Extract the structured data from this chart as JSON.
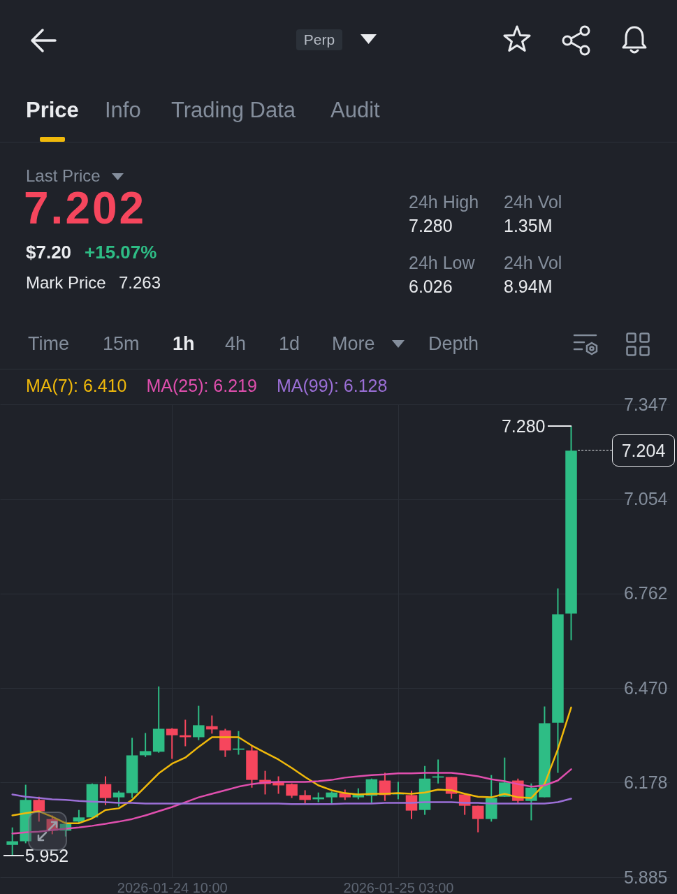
{
  "chart_data": {
    "type": "candlestick",
    "annotations": [
      "Perp",
      "Price",
      "Info",
      "Trading Data",
      "Audit",
      "Last Price",
      "7.202",
      "$7.20",
      "+15.07%",
      "Mark Price",
      "7.263",
      "24h High",
      "7.280",
      "24h Vol",
      "1.35M",
      "24h Low",
      "6.026",
      "24h Vol",
      "8.94M",
      "Time",
      "15m",
      "1h",
      "4h",
      "1d",
      "More",
      "Depth",
      {
        "text": "7.280",
        "x": "2026-01-25T16:00",
        "y": 7.28
      },
      {
        "text": "5.952",
        "x": "2026-01-23T22:00",
        "y": 5.952
      },
      {
        "text": "7.204",
        "x": "2026-01-25T16:00",
        "y": 7.204
      }
    ],
    "x": [
      "2026-01-23T22:00",
      "2026-01-23T23:00",
      "2026-01-24T00:00",
      "2026-01-24T01:00",
      "2026-01-24T02:00",
      "2026-01-24T03:00",
      "2026-01-24T04:00",
      "2026-01-24T05:00",
      "2026-01-24T06:00",
      "2026-01-24T07:00",
      "2026-01-24T08:00",
      "2026-01-24T09:00",
      "2026-01-24T10:00",
      "2026-01-24T11:00",
      "2026-01-24T12:00",
      "2026-01-24T13:00",
      "2026-01-24T14:00",
      "2026-01-24T15:00",
      "2026-01-24T16:00",
      "2026-01-24T17:00",
      "2026-01-24T18:00",
      "2026-01-24T19:00",
      "2026-01-24T20:00",
      "2026-01-24T21:00",
      "2026-01-24T22:00",
      "2026-01-24T23:00",
      "2026-01-25T00:00",
      "2026-01-25T01:00",
      "2026-01-25T02:00",
      "2026-01-25T03:00",
      "2026-01-25T04:00",
      "2026-01-25T05:00",
      "2026-01-25T06:00",
      "2026-01-25T07:00",
      "2026-01-25T08:00",
      "2026-01-25T09:00",
      "2026-01-25T10:00",
      "2026-01-25T11:00",
      "2026-01-25T12:00",
      "2026-01-25T13:00",
      "2026-01-25T14:00",
      "2026-01-25T15:00",
      "2026-01-25T16:00"
    ],
    "ohlc": [
      [
        5.985,
        6.039,
        5.952,
        5.996
      ],
      [
        5.996,
        6.171,
        5.99,
        6.124
      ],
      [
        6.124,
        6.134,
        6.057,
        6.089
      ],
      [
        6.065,
        6.076,
        6.018,
        6.029
      ],
      [
        6.029,
        6.057,
        6.011,
        6.05
      ],
      [
        6.057,
        6.093,
        6.05,
        6.07
      ],
      [
        6.07,
        6.175,
        6.065,
        6.173
      ],
      [
        6.173,
        6.197,
        6.108,
        6.13
      ],
      [
        6.132,
        6.152,
        6.104,
        6.147
      ],
      [
        6.145,
        6.316,
        6.13,
        6.262
      ],
      [
        6.262,
        6.331,
        6.257,
        6.275
      ],
      [
        6.273,
        6.475,
        6.27,
        6.344
      ],
      [
        6.344,
        6.346,
        6.251,
        6.324
      ],
      [
        6.324,
        6.372,
        6.29,
        6.318
      ],
      [
        6.318,
        6.415,
        6.309,
        6.355
      ],
      [
        6.352,
        6.385,
        6.329,
        6.342
      ],
      [
        6.339,
        6.344,
        6.257,
        6.277
      ],
      [
        6.279,
        6.337,
        6.264,
        6.283
      ],
      [
        6.277,
        6.292,
        6.162,
        6.186
      ],
      [
        6.186,
        6.214,
        6.141,
        6.173
      ],
      [
        6.18,
        6.197,
        6.143,
        6.169
      ],
      [
        6.173,
        6.175,
        6.13,
        6.137
      ],
      [
        6.139,
        6.154,
        6.113,
        6.124
      ],
      [
        6.126,
        6.147,
        6.117,
        6.132
      ],
      [
        6.132,
        6.15,
        6.113,
        6.147
      ],
      [
        6.145,
        6.156,
        6.124,
        6.132
      ],
      [
        6.132,
        6.16,
        6.126,
        6.141
      ],
      [
        6.137,
        6.19,
        6.115,
        6.188
      ],
      [
        6.184,
        6.208,
        6.121,
        6.139
      ],
      [
        6.141,
        6.18,
        6.126,
        6.145
      ],
      [
        6.139,
        6.152,
        6.065,
        6.091
      ],
      [
        6.093,
        6.229,
        6.078,
        6.19
      ],
      [
        6.193,
        6.249,
        6.175,
        6.197
      ],
      [
        6.195,
        6.195,
        6.128,
        6.143
      ],
      [
        6.141,
        6.141,
        6.078,
        6.106
      ],
      [
        6.106,
        6.106,
        6.024,
        6.065
      ],
      [
        6.065,
        6.201,
        6.057,
        6.13
      ],
      [
        6.134,
        6.255,
        6.134,
        6.178
      ],
      [
        6.184,
        6.19,
        6.113,
        6.121
      ],
      [
        6.121,
        6.175,
        6.061,
        6.162
      ],
      [
        6.132,
        6.413,
        6.132,
        6.361
      ],
      [
        6.363,
        6.778,
        6.208,
        6.698
      ],
      [
        6.7,
        7.28,
        6.618,
        7.204
      ]
    ],
    "colors": [
      "#2ebd85",
      "#2ebd85",
      "#f6465d",
      "#f6465d",
      "#2ebd85",
      "#2ebd85",
      "#2ebd85",
      "#f6465d",
      "#2ebd85",
      "#2ebd85",
      "#2ebd85",
      "#2ebd85",
      "#f6465d",
      "#f6465d",
      "#2ebd85",
      "#f6465d",
      "#f6465d",
      "#2ebd85",
      "#f6465d",
      "#f6465d",
      "#f6465d",
      "#f6465d",
      "#f6465d",
      "#2ebd85",
      "#2ebd85",
      "#f6465d",
      "#2ebd85",
      "#2ebd85",
      "#f6465d",
      "#2ebd85",
      "#f6465d",
      "#2ebd85",
      "#2ebd85",
      "#f6465d",
      "#f6465d",
      "#f6465d",
      "#2ebd85",
      "#2ebd85",
      "#f6465d",
      "#2ebd85",
      "#2ebd85",
      "#2ebd85",
      "#2ebd85"
    ],
    "series": [
      {
        "name": "MA(7): 6.410",
        "type": "line",
        "color": "#f0b90b",
        "values": [
          6.076,
          6.083,
          6.089,
          6.072,
          6.052,
          6.052,
          6.067,
          6.093,
          6.098,
          6.124,
          6.165,
          6.206,
          6.236,
          6.255,
          6.288,
          6.318,
          6.318,
          6.318,
          6.292,
          6.27,
          6.249,
          6.223,
          6.195,
          6.169,
          6.154,
          6.145,
          6.141,
          6.143,
          6.143,
          6.145,
          6.143,
          6.147,
          6.156,
          6.154,
          6.143,
          6.134,
          6.132,
          6.143,
          6.132,
          6.13,
          6.173,
          6.281,
          6.41
        ]
      },
      {
        "name": "MA(25): 6.219",
        "type": "line",
        "color": "#e04fae",
        "values": [
          6.02,
          6.024,
          6.026,
          6.031,
          6.035,
          6.039,
          6.044,
          6.05,
          6.057,
          6.065,
          6.076,
          6.089,
          6.102,
          6.117,
          6.132,
          6.143,
          6.154,
          6.165,
          6.173,
          6.178,
          6.18,
          6.18,
          6.18,
          6.182,
          6.186,
          6.193,
          6.197,
          6.201,
          6.203,
          6.206,
          6.206,
          6.208,
          6.208,
          6.208,
          6.203,
          6.197,
          6.188,
          6.182,
          6.173,
          6.165,
          6.169,
          6.184,
          6.219
        ]
      },
      {
        "name": "MA(99): 6.128",
        "type": "line",
        "color": "#9b6fd6",
        "values": [
          6.141,
          6.134,
          6.13,
          6.126,
          6.124,
          6.121,
          6.119,
          6.117,
          6.115,
          6.115,
          6.113,
          6.113,
          6.113,
          6.113,
          6.113,
          6.113,
          6.113,
          6.113,
          6.113,
          6.113,
          6.113,
          6.111,
          6.111,
          6.111,
          6.111,
          6.113,
          6.113,
          6.113,
          6.115,
          6.115,
          6.115,
          6.117,
          6.117,
          6.117,
          6.115,
          6.115,
          6.113,
          6.113,
          6.113,
          6.113,
          6.113,
          6.117,
          6.128
        ]
      }
    ],
    "xlim": [
      "2026-01-23T21:20",
      "2026-01-25T23:10"
    ],
    "xticks": [
      {
        "value": "2026-01-24T10:00",
        "label": "2026-01-24 10:00"
      },
      {
        "value": "2026-01-25T03:00",
        "label": "2026-01-25 03:00"
      }
    ],
    "ylim": [
      5.885,
      7.347
    ],
    "yticks": [
      5.885,
      6.178,
      {
        "value": 6.47,
        "label": "6.470"
      },
      6.762,
      7.054,
      7.347
    ],
    "grid": true,
    "legend": "top left"
  }
}
